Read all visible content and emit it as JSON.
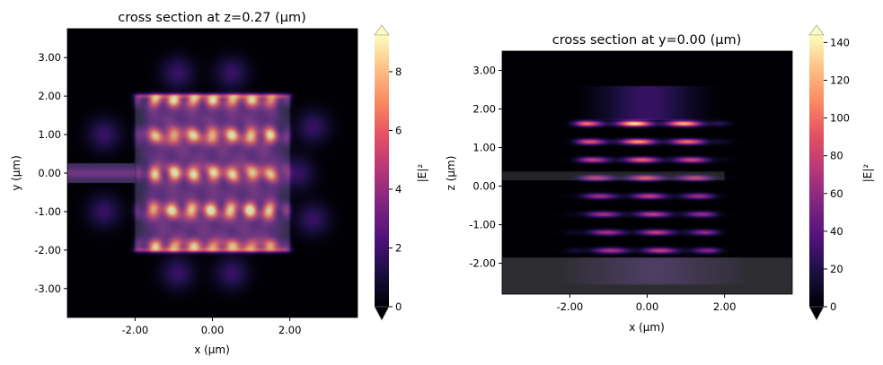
{
  "chart_data": [
    {
      "type": "heatmap",
      "title": "cross section at z=0.27 (µm)",
      "xlabel": "x (µm)",
      "ylabel": "y (µm)",
      "xlim": [
        -3.75,
        3.75
      ],
      "ylim": [
        -3.75,
        3.75
      ],
      "xticks": [
        -2,
        0,
        2
      ],
      "xtick_labels": [
        "-2.00",
        "0.00",
        "2.00"
      ],
      "yticks": [
        3,
        2,
        1,
        0,
        -1,
        -2,
        -3
      ],
      "ytick_labels": [
        "3.00",
        "2.00",
        "1.00",
        "0.00",
        "-1.00",
        "-2.00",
        "-3.00"
      ],
      "colormap": "magma",
      "colorbar": {
        "label": "|E|²",
        "range": [
          0,
          9.25
        ],
        "ticks": [
          0,
          2,
          4,
          6,
          8
        ],
        "tick_labels": [
          "0",
          "2",
          "4",
          "6",
          "8"
        ],
        "extend": "both"
      }
    },
    {
      "type": "heatmap",
      "title": "cross section at y=0.00 (µm)",
      "xlabel": "x (µm)",
      "ylabel": "z (µm)",
      "xlim": [
        -3.75,
        3.75
      ],
      "ylim": [
        -2.8,
        3.5
      ],
      "xticks": [
        -2,
        0,
        2
      ],
      "xtick_labels": [
        "-2.00",
        "0.00",
        "2.00"
      ],
      "yticks": [
        3,
        2,
        1,
        0,
        -1,
        -2
      ],
      "ytick_labels": [
        "3.00",
        "2.00",
        "1.00",
        "0.00",
        "-1.00",
        "-2.00"
      ],
      "colormap": "magma",
      "colorbar": {
        "label": "|E|²",
        "range": [
          0,
          144
        ],
        "ticks": [
          0,
          20,
          40,
          60,
          80,
          100,
          120,
          140
        ],
        "tick_labels": [
          "0",
          "20",
          "40",
          "60",
          "80",
          "100",
          "120",
          "140"
        ],
        "extend": "both"
      }
    }
  ]
}
